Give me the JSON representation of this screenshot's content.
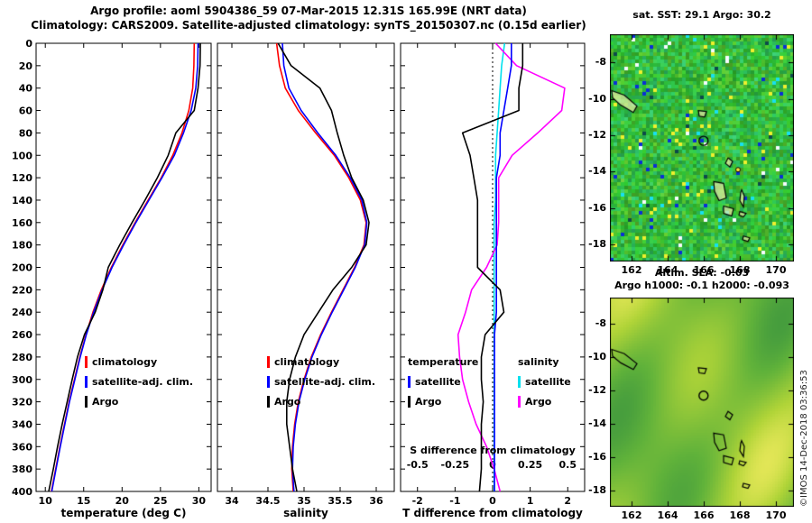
{
  "titles": {
    "line1": "Argo profile: aoml 5904386_59 07-Mar-2015 12.31S 165.99E (NRT data)",
    "line2": "Climatology: CARS2009. Satellite-adjusted climatology: synTS_20150307.nc (0.15d earlier)"
  },
  "colors": {
    "climatology": "#ff0000",
    "satellite": "#0000ff",
    "argo": "#000000",
    "s_satellite": "#00e0ee",
    "s_argo": "#ff00ff"
  },
  "legends": {
    "climatology": "climatology",
    "satellite_adj": "satellite-adj. clim.",
    "argo": "Argo",
    "temperature_title": "temperature",
    "salinity_title": "salinity",
    "satellite": "satellite"
  },
  "chart_data": {
    "type": "line",
    "title": "Argo profile: aoml 5904386_59 07-Mar-2015 12.31S 165.99E (NRT data)",
    "subtitle": "Climatology: CARS2009. Satellite-adjusted climatology: synTS_20150307.nc (0.15d earlier)",
    "depth_axis": {
      "label": "depth",
      "min": 0,
      "max": 400,
      "tick_step": 20,
      "direction": "down"
    },
    "depth_m": [
      0,
      20,
      40,
      60,
      80,
      100,
      120,
      140,
      160,
      180,
      200,
      220,
      240,
      260,
      280,
      300,
      320,
      340,
      360,
      380,
      400
    ],
    "panels": [
      {
        "id": "temperature",
        "xlabel": "temperature (deg C)",
        "xlim": [
          8.8,
          31.6
        ],
        "xticks": [
          10,
          15,
          20,
          25,
          30
        ],
        "xtick_labels": [
          "10",
          "15",
          "20",
          "25",
          "30"
        ],
        "series": [
          {
            "name": "climatology",
            "color": "#ff0000",
            "values": [
              29.4,
              29.35,
              29.2,
              28.7,
              27.8,
              26.6,
              25.1,
              23.4,
              21.7,
              20.1,
              18.6,
              17.3,
              16.2,
              15.3,
              14.5,
              13.8,
              13.1,
              12.5,
              11.9,
              11.35,
              10.8
            ]
          },
          {
            "name": "satellite-adj. clim.",
            "color": "#0000ff",
            "values": [
              29.9,
              29.85,
              29.6,
              29.0,
              28.0,
              26.8,
              25.2,
              23.5,
              21.8,
              20.2,
              18.7,
              17.4,
              16.3,
              15.35,
              14.55,
              13.85,
              13.15,
              12.55,
              11.95,
              11.4,
              10.85
            ]
          },
          {
            "name": "Argo",
            "color": "#000000",
            "values": [
              30.2,
              30.15,
              29.9,
              29.4,
              27.0,
              26.0,
              24.6,
              23.0,
              21.3,
              19.7,
              18.2,
              17.5,
              16.5,
              15.1,
              14.2,
              13.5,
              12.85,
              12.2,
              11.6,
              11.05,
              10.45
            ]
          }
        ]
      },
      {
        "id": "salinity",
        "xlabel": "salinity",
        "xlim": [
          33.8,
          36.25
        ],
        "xticks": [
          34,
          34.5,
          35,
          35.5,
          36
        ],
        "xtick_labels": [
          "34",
          "34.5",
          "35",
          "35.5",
          "36"
        ],
        "series": [
          {
            "name": "climatology",
            "color": "#ff0000",
            "values": [
              34.62,
              34.66,
              34.74,
              34.92,
              35.16,
              35.42,
              35.62,
              35.78,
              35.86,
              35.83,
              35.7,
              35.54,
              35.38,
              35.23,
              35.1,
              35.0,
              34.92,
              34.87,
              34.84,
              34.83,
              34.85
            ]
          },
          {
            "name": "satellite-adj. clim.",
            "color": "#0000ff",
            "values": [
              34.7,
              34.72,
              34.79,
              34.96,
              35.19,
              35.44,
              35.64,
              35.8,
              35.87,
              35.84,
              35.71,
              35.55,
              35.39,
              35.24,
              35.11,
              35.01,
              34.93,
              34.88,
              34.85,
              34.84,
              34.86
            ]
          },
          {
            "name": "Argo",
            "color": "#000000",
            "values": [
              34.64,
              34.82,
              35.22,
              35.38,
              35.46,
              35.55,
              35.66,
              35.82,
              35.9,
              35.86,
              35.66,
              35.4,
              35.2,
              35.0,
              34.88,
              34.8,
              34.76,
              34.76,
              34.8,
              34.84,
              34.9
            ]
          }
        ]
      },
      {
        "id": "difference",
        "xlabel": "T difference from climatology",
        "xlim": [
          -2.45,
          2.45
        ],
        "xticks": [
          -2,
          -1,
          0,
          1,
          2
        ],
        "xtick_labels": [
          "-2",
          "-1",
          "0",
          "1",
          "2"
        ],
        "secondary": {
          "label": "S difference from climatology",
          "tick_labels": [
            "-0.5",
            "-0.25",
            "0",
            "0.25",
            "0.5"
          ],
          "scale_T_per_S": 4
        },
        "series": [
          {
            "name": "S satellite",
            "axis": "S",
            "color": "#00e0ee",
            "values": [
              0.08,
              0.06,
              0.05,
              0.04,
              0.03,
              0.02,
              0.02,
              0.02,
              0.01,
              0.01,
              0.01,
              0.01,
              0.01,
              0.01,
              0.01,
              0.01,
              0.01,
              0.01,
              0.01,
              0.01,
              0.01
            ]
          },
          {
            "name": "S Argo",
            "axis": "S",
            "color": "#ff00ff",
            "values": [
              0.02,
              0.16,
              0.48,
              0.46,
              0.3,
              0.13,
              0.04,
              0.04,
              0.04,
              0.03,
              -0.04,
              -0.14,
              -0.18,
              -0.23,
              -0.22,
              -0.2,
              -0.16,
              -0.11,
              -0.04,
              0.01,
              0.05
            ]
          },
          {
            "name": "T satellite",
            "axis": "T",
            "color": "#0000ff",
            "values": [
              0.5,
              0.5,
              0.4,
              0.3,
              0.2,
              0.2,
              0.1,
              0.1,
              0.1,
              0.1,
              0.1,
              0.1,
              0.1,
              0.05,
              0.05,
              0.05,
              0.05,
              0.05,
              0.05,
              0.05,
              0.05
            ]
          },
          {
            "name": "T Argo",
            "axis": "T",
            "color": "#000000",
            "values": [
              0.8,
              0.8,
              0.7,
              0.7,
              -0.8,
              -0.6,
              -0.5,
              -0.4,
              -0.4,
              -0.4,
              -0.4,
              0.2,
              0.3,
              -0.2,
              -0.3,
              -0.3,
              -0.25,
              -0.3,
              -0.3,
              -0.3,
              -0.35
            ]
          }
        ]
      }
    ]
  },
  "maps": {
    "sst": {
      "title": "sat. SST: 29.1 Argo: 30.2"
    },
    "sla": {
      "title_line1": "Altim. SLA: -0.03",
      "title_line2": "Argo h1000: -0.1 h2000: -0.093"
    },
    "lon_ticks": [
      162,
      164,
      166,
      168,
      170
    ],
    "lat_ticks": [
      -8,
      -10,
      -12,
      -14,
      -16,
      -18
    ],
    "lon_range": [
      160.8,
      171.0
    ],
    "lat_range": [
      -6.45,
      -18.95
    ],
    "float_marker": {
      "lon": 165.99,
      "lat": -12.31
    },
    "sst_dot_marker": {
      "lon": 167.9,
      "lat": -13.9
    },
    "islands": [
      {
        "name": "makira",
        "pts": [
          [
            160.9,
            -9.55
          ],
          [
            161.6,
            -9.8
          ],
          [
            162.3,
            -10.4
          ],
          [
            162.1,
            -10.75
          ],
          [
            161.4,
            -10.35
          ],
          [
            160.95,
            -9.95
          ]
        ]
      },
      {
        "name": "santa-cruz",
        "pts": [
          [
            165.7,
            -10.65
          ],
          [
            166.15,
            -10.7
          ],
          [
            166.05,
            -11.0
          ],
          [
            165.75,
            -10.95
          ]
        ]
      },
      {
        "name": "vanua-lava",
        "pts": [
          [
            167.35,
            -13.25
          ],
          [
            167.6,
            -13.45
          ],
          [
            167.45,
            -13.75
          ],
          [
            167.2,
            -13.55
          ]
        ]
      },
      {
        "name": "espiritu-santo",
        "pts": [
          [
            166.55,
            -14.55
          ],
          [
            167.1,
            -14.65
          ],
          [
            167.25,
            -15.45
          ],
          [
            166.85,
            -15.6
          ],
          [
            166.6,
            -15.1
          ]
        ]
      },
      {
        "name": "maewo-pentecost",
        "pts": [
          [
            168.1,
            -15.0
          ],
          [
            168.25,
            -15.35
          ],
          [
            168.2,
            -15.95
          ],
          [
            168.0,
            -15.6
          ],
          [
            168.05,
            -15.15
          ]
        ]
      },
      {
        "name": "malakula",
        "pts": [
          [
            167.1,
            -15.9
          ],
          [
            167.65,
            -16.05
          ],
          [
            167.55,
            -16.45
          ],
          [
            167.1,
            -16.3
          ]
        ]
      },
      {
        "name": "ambrym",
        "pts": [
          [
            168.0,
            -16.2
          ],
          [
            168.35,
            -16.3
          ],
          [
            168.2,
            -16.5
          ],
          [
            167.95,
            -16.4
          ]
        ]
      },
      {
        "name": "efate",
        "pts": [
          [
            168.2,
            -17.55
          ],
          [
            168.55,
            -17.65
          ],
          [
            168.45,
            -17.85
          ],
          [
            168.15,
            -17.75
          ]
        ]
      }
    ]
  },
  "watermark": "©IMOS 14-Dec-2018 03:36:53"
}
